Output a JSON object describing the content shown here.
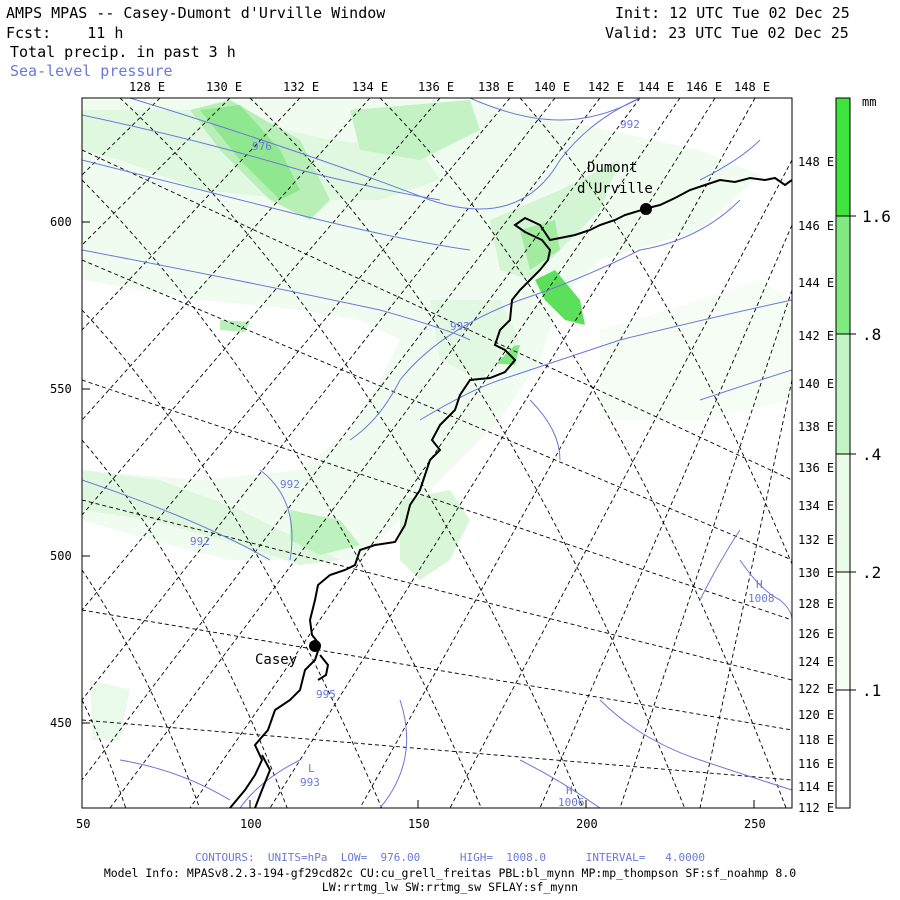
{
  "header": {
    "title": "AMPS MPAS -- Casey-Dumont d'Urville Window",
    "fcst": "Fcst:    11 h",
    "field1": "Total precip. in past 3 h",
    "field2": "Sea-level pressure",
    "init": "Init: 12 UTC Tue 02 Dec 25",
    "valid": "Valid: 23 UTC Tue 02 Dec 25"
  },
  "axes": {
    "top_lon_labels": [
      "128 E",
      "130 E",
      "132 E",
      "134 E",
      "136 E",
      "138 E",
      "140 E",
      "142 E",
      "144 E",
      "146 E",
      "148 E"
    ],
    "right_lon_labels": [
      "148 E",
      "146 E",
      "144 E",
      "142 E",
      "140 E",
      "138 E",
      "136 E",
      "134 E",
      "132 E",
      "130 E",
      "128 E",
      "126 E",
      "124 E",
      "122 E",
      "120 E",
      "118 E",
      "116 E",
      "114 E",
      "112 E"
    ],
    "x_ticks": [
      "50",
      "100",
      "150",
      "200",
      "250"
    ],
    "y_ticks": [
      "600",
      "550",
      "500",
      "450"
    ]
  },
  "stations": [
    {
      "name": "Dumont",
      "name2": "d'Urville"
    },
    {
      "name": "Casey"
    }
  ],
  "contour_labels": [
    "976",
    "992",
    "992",
    "992",
    "992",
    "1008",
    "995",
    "L",
    "993",
    "H",
    "1006",
    "H"
  ],
  "colorbar": {
    "unit": "mm",
    "labels": [
      "1.6",
      ".8",
      ".4",
      ".2",
      ".1"
    ],
    "colors": [
      "#3ee33e",
      "#7fea7f",
      "#c3f4c3",
      "#e8fbe8",
      "#ffffff"
    ]
  },
  "footer": {
    "contours": "CONTOURS:  UNITS=hPa  LOW=  976.00      HIGH=  1008.0      INTERVAL=   4.0000",
    "model_info": "Model Info: MPASv8.2.3-194-gf29cd82c CU:cu_grell_freitas PBL:bl_mynn MP:mp_thompson SF:sf_noahmp 8.0",
    "model_info2": "LW:rrtmg_lw SW:rrtmg_sw SFLAY:sf_mynn"
  },
  "colors": {
    "contour": "#6a78d8",
    "precip_light": "#e3f8e3",
    "precip_mid": "#b9f0b9",
    "precip_high": "#5ce05c"
  }
}
